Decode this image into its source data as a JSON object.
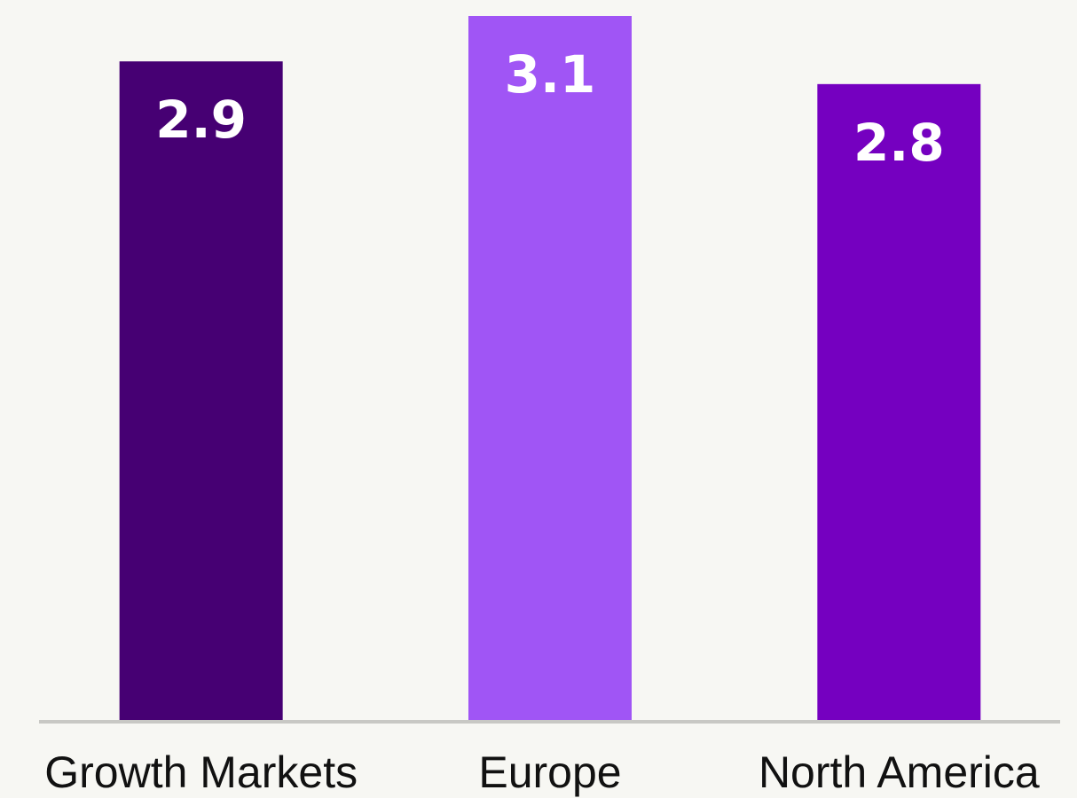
{
  "chart_data": {
    "type": "bar",
    "categories": [
      "Growth Markets",
      "Europe",
      "North America"
    ],
    "values": [
      2.9,
      3.1,
      2.8
    ],
    "colors": [
      "#460073",
      "#a055f5",
      "#7500c0"
    ]
  }
}
